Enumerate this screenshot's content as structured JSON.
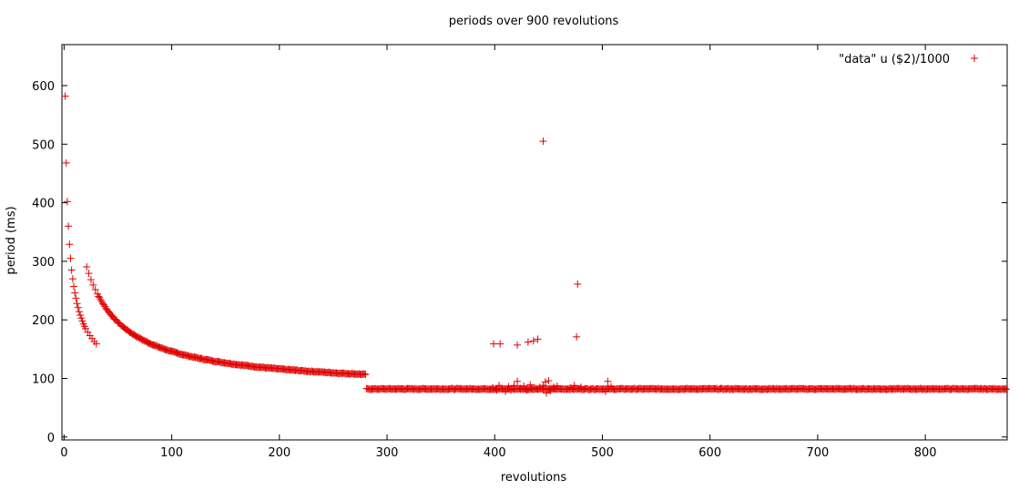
{
  "chart_data": {
    "type": "scatter",
    "title": "periods over 900 revolutions",
    "xlabel": "revolutions",
    "ylabel": "period (ms)",
    "xlim": [
      -2,
      876
    ],
    "ylim": [
      -5,
      670
    ],
    "xticks": [
      0,
      100,
      200,
      300,
      400,
      500,
      600,
      700,
      800
    ],
    "yticks": [
      0,
      100,
      200,
      300,
      400,
      500,
      600
    ],
    "grid": false,
    "legend_position": "top-right",
    "marker_color": "#e00000",
    "series": [
      {
        "name": "\"data\" u ($2)/1000",
        "main_curve": {
          "x_range": [
            1,
            875
          ],
          "early_points": [
            [
              1,
              582
            ],
            [
              2,
              468
            ],
            [
              3,
              402
            ],
            [
              4,
              360
            ],
            [
              5,
              329
            ],
            [
              6,
              305
            ],
            [
              7,
              285
            ],
            [
              8,
              270
            ],
            [
              9,
              257
            ],
            [
              10,
              246
            ],
            [
              11,
              237
            ],
            [
              12,
              228
            ],
            [
              13,
              221
            ],
            [
              14,
              214
            ],
            [
              15,
              208
            ],
            [
              16,
              203
            ],
            [
              17,
              198
            ],
            [
              18,
              193
            ],
            [
              19,
              189
            ],
            [
              20,
              185
            ],
            [
              22,
              179
            ],
            [
              24,
              173
            ],
            [
              26,
              168
            ],
            [
              28,
              163
            ],
            [
              30,
              159
            ]
          ],
          "model": {
            "a": 82,
            "b": 7300,
            "c": 14,
            "d": 0.8
          }
        },
        "outliers": [
          [
            399,
            159
          ],
          [
            405,
            159
          ],
          [
            421,
            157
          ],
          [
            431,
            162
          ],
          [
            436,
            164
          ],
          [
            440,
            167
          ],
          [
            445,
            505
          ],
          [
            477,
            261
          ],
          [
            476,
            171
          ],
          [
            398,
            84
          ],
          [
            402,
            80
          ],
          [
            404,
            88
          ],
          [
            407,
            82
          ],
          [
            410,
            78
          ],
          [
            413,
            86
          ],
          [
            415,
            80
          ],
          [
            418,
            88
          ],
          [
            421,
            95
          ],
          [
            424,
            83
          ],
          [
            427,
            87
          ],
          [
            430,
            80
          ],
          [
            433,
            89
          ],
          [
            437,
            84
          ],
          [
            442,
            85
          ],
          [
            445,
            88
          ],
          [
            447,
            94
          ],
          [
            448,
            75
          ],
          [
            450,
            96
          ],
          [
            452,
            79
          ],
          [
            455,
            85
          ],
          [
            458,
            87
          ],
          [
            470,
            84
          ],
          [
            474,
            88
          ],
          [
            480,
            85
          ],
          [
            503,
            78
          ],
          [
            505,
            95
          ],
          [
            508,
            86
          ]
        ]
      }
    ]
  }
}
